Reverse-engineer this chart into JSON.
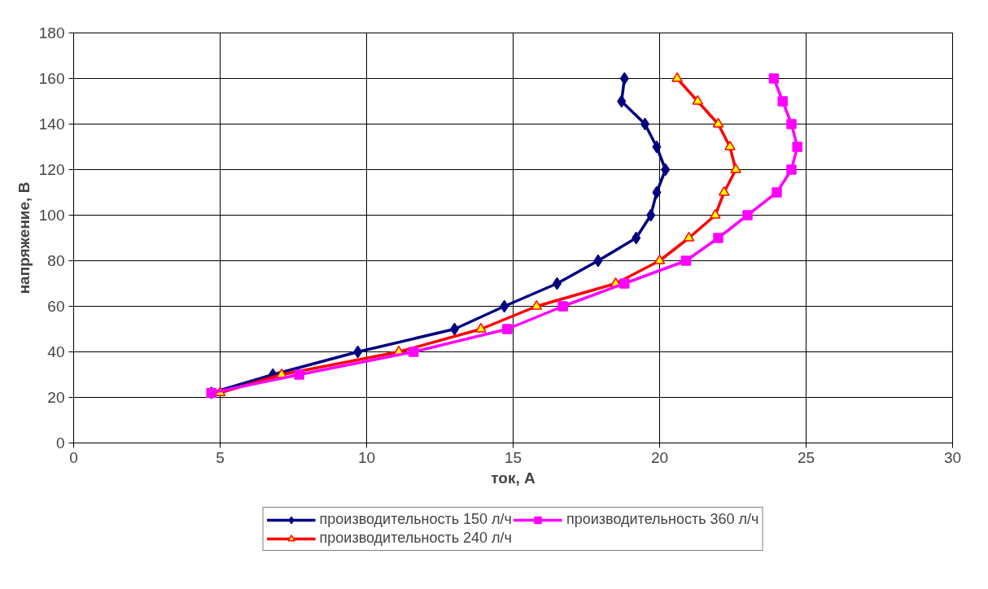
{
  "chart_data": {
    "type": "line",
    "xlabel": "ток, А",
    "ylabel": "напряжение, В",
    "xlim": [
      0,
      30
    ],
    "xticks": [
      0,
      5,
      10,
      15,
      20,
      25,
      30
    ],
    "ylim": [
      0,
      180
    ],
    "yticks": [
      0,
      20,
      40,
      60,
      80,
      100,
      120,
      140,
      160,
      180
    ],
    "grid": true,
    "legend": "bottom",
    "line_style": "solid",
    "series": [
      {
        "name": "производительность 150 л/ч",
        "color": "#000080",
        "marker": "diamond",
        "x": [
          4.7,
          6.8,
          9.7,
          13,
          14.7,
          16.5,
          17.9,
          19.2,
          19.7,
          19.9,
          20.2,
          19.9,
          19.5,
          18.7,
          18.8
        ],
        "values": [
          22,
          30,
          40,
          50,
          60,
          70,
          80,
          90,
          100,
          110,
          120,
          130,
          140,
          150,
          160
        ]
      },
      {
        "name": "производительность 240 л/ч",
        "color": "#ff0000",
        "marker": "triangle",
        "x": [
          5,
          7.1,
          11.1,
          13.9,
          15.8,
          18.5,
          20,
          21,
          21.9,
          22.2,
          22.6,
          22.4,
          22,
          21.3,
          20.6
        ],
        "values": [
          22,
          30,
          40,
          50,
          60,
          70,
          80,
          90,
          100,
          110,
          120,
          130,
          140,
          150,
          160
        ]
      },
      {
        "name": "производительность 360 л/ч",
        "color": "#ff00ff",
        "marker": "square",
        "x": [
          4.7,
          7.7,
          11.6,
          14.8,
          16.7,
          18.8,
          20.9,
          22,
          23,
          24,
          24.5,
          24.7,
          24.5,
          24.2,
          23.9
        ],
        "values": [
          22,
          30,
          40,
          50,
          60,
          70,
          80,
          90,
          100,
          110,
          120,
          130,
          140,
          150,
          160
        ]
      }
    ]
  }
}
